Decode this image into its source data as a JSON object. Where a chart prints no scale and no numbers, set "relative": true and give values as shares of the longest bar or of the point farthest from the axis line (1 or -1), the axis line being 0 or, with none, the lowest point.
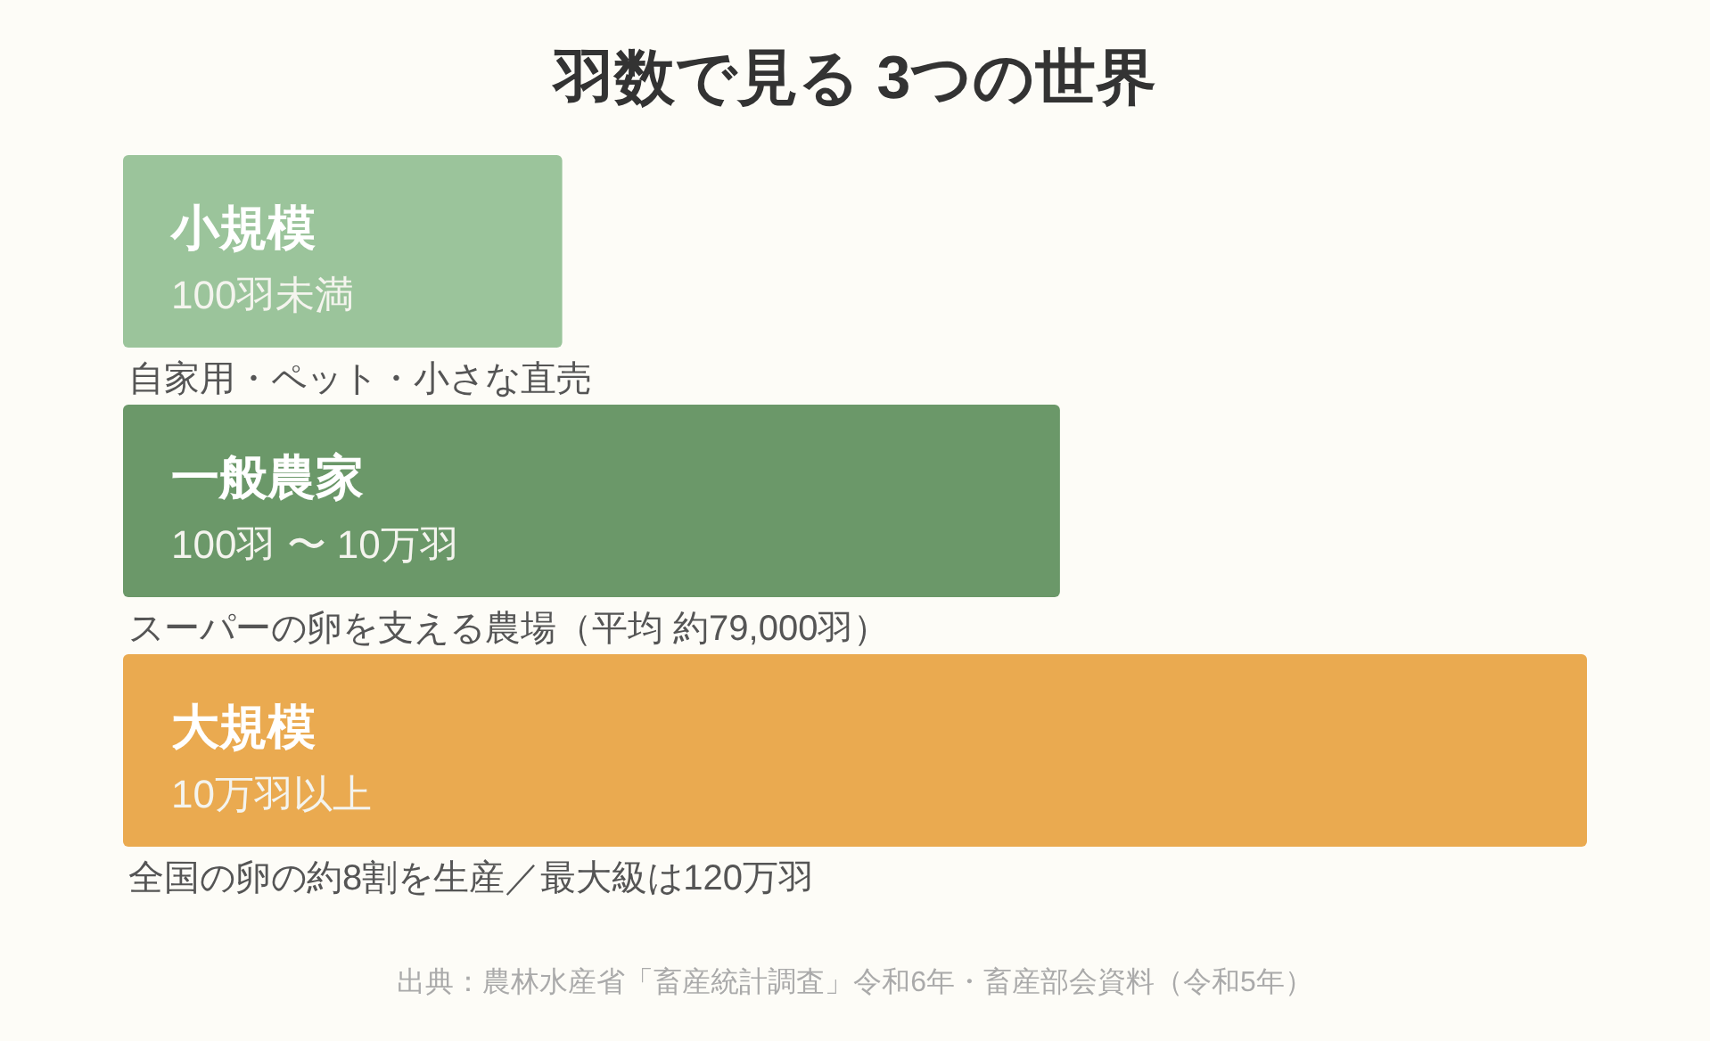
{
  "chart_data": {
    "type": "bar",
    "orientation": "horizontal",
    "relative": true,
    "title": "羽数で見る 3つの世界",
    "categories": [
      "小規模",
      "一般農家",
      "大規模"
    ],
    "values": [
      0.3,
      0.64,
      1
    ],
    "colors": [
      "#9bc49b",
      "#6b9869",
      "#eaaa50"
    ],
    "annotations": [
      "100羽未満",
      "自家用・ペット・小さな直売",
      "100羽 〜 10万羽",
      "スーパーの卵を支える農場（平均 約79,000羽）",
      "10万羽以上",
      "全国の卵の約8割を生産／最大級は120万羽",
      "出典：農林水産省「畜産統計調査」令和6年・畜産部会資料（令和5年）"
    ]
  }
}
